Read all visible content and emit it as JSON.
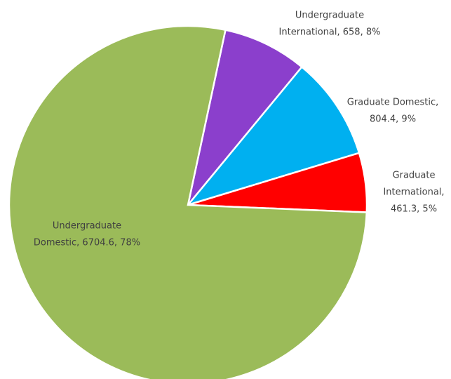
{
  "chart_data": {
    "type": "pie",
    "categories": [
      "Undergraduate International",
      "Graduate Domestic",
      "Graduate International",
      "Undergraduate Domestic"
    ],
    "values": [
      658,
      804.4,
      461.3,
      6704.6
    ],
    "percents": [
      8,
      9,
      5,
      78
    ],
    "value_labels": [
      [
        "Undergraduate",
        "International, 658, 8%"
      ],
      [
        "Graduate Domestic,",
        "804.4, 9%"
      ],
      [
        "Graduate",
        "International,",
        "461.3, 5%"
      ],
      [
        "Undergraduate",
        "Domestic, 6704.6, 78%"
      ]
    ],
    "colors": [
      "#8b3fcc",
      "#00b0f0",
      "#ff0000",
      "#9bbb59"
    ]
  }
}
